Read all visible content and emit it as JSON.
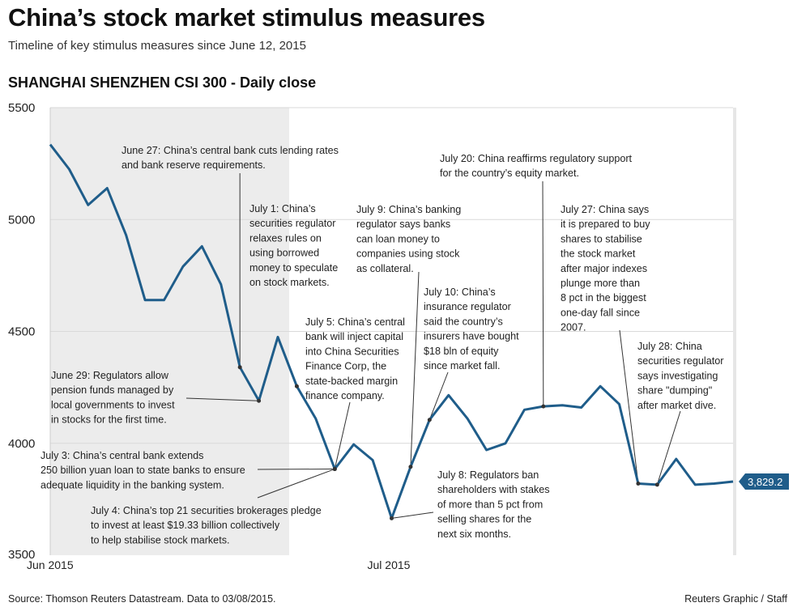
{
  "header": {
    "title": "China’s stock market stimulus measures",
    "subtitle": "Timeline of key stimulus measures since June 12, 2015",
    "chart_title": "SHANGHAI SHENZHEN CSI 300 - Daily close"
  },
  "footer": {
    "source": "Source: Thomson Reuters Datastream. Data to 03/08/2015.",
    "credit": "Reuters Graphic / Staff"
  },
  "colors": {
    "line": "#1f5d8a",
    "shade": "#ececec",
    "grid": "#d9d9d9",
    "label_bg": "#1f5d8a"
  },
  "chart_data": {
    "type": "line",
    "title": "SHANGHAI SHENZHEN CSI 300 - Daily close",
    "xlabel": "",
    "ylabel": "",
    "ylim": [
      3500,
      5500
    ],
    "yticks": [
      3500,
      4000,
      4500,
      5000,
      5500
    ],
    "ytick_labels": [
      "3500",
      "4000",
      "4500",
      "5000",
      "5500"
    ],
    "x_tick_labels": [
      "Jun 2015",
      "Jul 2015"
    ],
    "x_tick_dates": [
      "2015-06-12",
      "2015-07-08"
    ],
    "shaded_range": [
      "2015-06-12",
      "2015-06-30"
    ],
    "last_value_label": "3,829.2",
    "series": [
      {
        "name": "CSI 300",
        "dates": [
          "2015-06-12",
          "2015-06-15",
          "2015-06-16",
          "2015-06-17",
          "2015-06-18",
          "2015-06-19",
          "2015-06-22",
          "2015-06-23",
          "2015-06-24",
          "2015-06-25",
          "2015-06-26",
          "2015-06-29",
          "2015-06-30",
          "2015-07-01",
          "2015-07-02",
          "2015-07-03",
          "2015-07-06",
          "2015-07-07",
          "2015-07-08",
          "2015-07-09",
          "2015-07-10",
          "2015-07-13",
          "2015-07-14",
          "2015-07-15",
          "2015-07-16",
          "2015-07-17",
          "2015-07-20",
          "2015-07-21",
          "2015-07-22",
          "2015-07-23",
          "2015-07-24",
          "2015-07-27",
          "2015-07-28",
          "2015-07-29",
          "2015-07-30",
          "2015-07-31",
          "2015-08-03"
        ],
        "values": [
          5335,
          5225,
          5065,
          5140,
          4930,
          4640,
          4640,
          4790,
          4880,
          4710,
          4340,
          4190,
          4475,
          4255,
          4110,
          3885,
          3995,
          3925,
          3665,
          3895,
          4105,
          4215,
          4110,
          3970,
          4000,
          4150,
          4165,
          4170,
          4160,
          4255,
          4175,
          3820,
          3815,
          3930,
          3815,
          3820,
          3829.2
        ]
      }
    ],
    "annotations": [
      {
        "id": "jun27",
        "date": "2015-06-26",
        "text": [
          "June 27: China’s central bank cuts lending rates",
          "and bank reserve requirements."
        ]
      },
      {
        "id": "jun29",
        "date": "2015-06-29",
        "text": [
          "June 29: Regulators allow",
          "pension funds managed by",
          "local governments to invest",
          "in stocks for the first time."
        ]
      },
      {
        "id": "jul1",
        "date": "2015-07-01",
        "text": [
          "July 1: China’s",
          "securities regulator",
          "relaxes rules on",
          "using borrowed",
          "money to speculate",
          "on stock markets."
        ]
      },
      {
        "id": "jul3",
        "date": "2015-07-03",
        "text": [
          "July 3: China’s central bank extends",
          "250 billion yuan loan to state banks to ensure",
          "adequate liquidity in the banking system."
        ]
      },
      {
        "id": "jul4",
        "date": "2015-07-03",
        "text": [
          "July 4: China’s top 21 securities brokerages pledge",
          "to invest at least $19.33 billion collectively",
          "to help stabilise stock markets."
        ]
      },
      {
        "id": "jul5",
        "date": "2015-07-03",
        "text": [
          "July 5: China’s central",
          "bank will inject capital",
          "into China Securities",
          "Finance Corp, the",
          "state-backed margin",
          "finance company."
        ]
      },
      {
        "id": "jul8",
        "date": "2015-07-08",
        "text": [
          "July 8: Regulators ban",
          "shareholders with stakes",
          "of more than 5 pct from",
          "selling shares for the",
          "next six months."
        ]
      },
      {
        "id": "jul9",
        "date": "2015-07-09",
        "text": [
          "July 9: China’s banking",
          "regulator says banks",
          "can loan money to",
          "companies using stock",
          "as collateral."
        ]
      },
      {
        "id": "jul10",
        "date": "2015-07-10",
        "text": [
          "July 10: China’s",
          "insurance regulator",
          "said the country’s",
          "insurers have bought",
          "$18 bln of equity",
          "since market fall."
        ]
      },
      {
        "id": "jul20",
        "date": "2015-07-20",
        "text": [
          "July 20: China reaffirms regulatory support",
          "for the country’s equity market."
        ]
      },
      {
        "id": "jul27",
        "date": "2015-07-27",
        "text": [
          "July 27: China says",
          "it is prepared to buy",
          "shares to stabilise",
          "the stock market",
          "after major indexes",
          "plunge more than",
          "8 pct in the biggest",
          "one-day fall since",
          "2007."
        ]
      },
      {
        "id": "jul28",
        "date": "2015-07-28",
        "text": [
          "July 28: China",
          "securities regulator",
          "says investigating",
          "share \"dumping\"",
          "after market dive."
        ]
      }
    ]
  }
}
